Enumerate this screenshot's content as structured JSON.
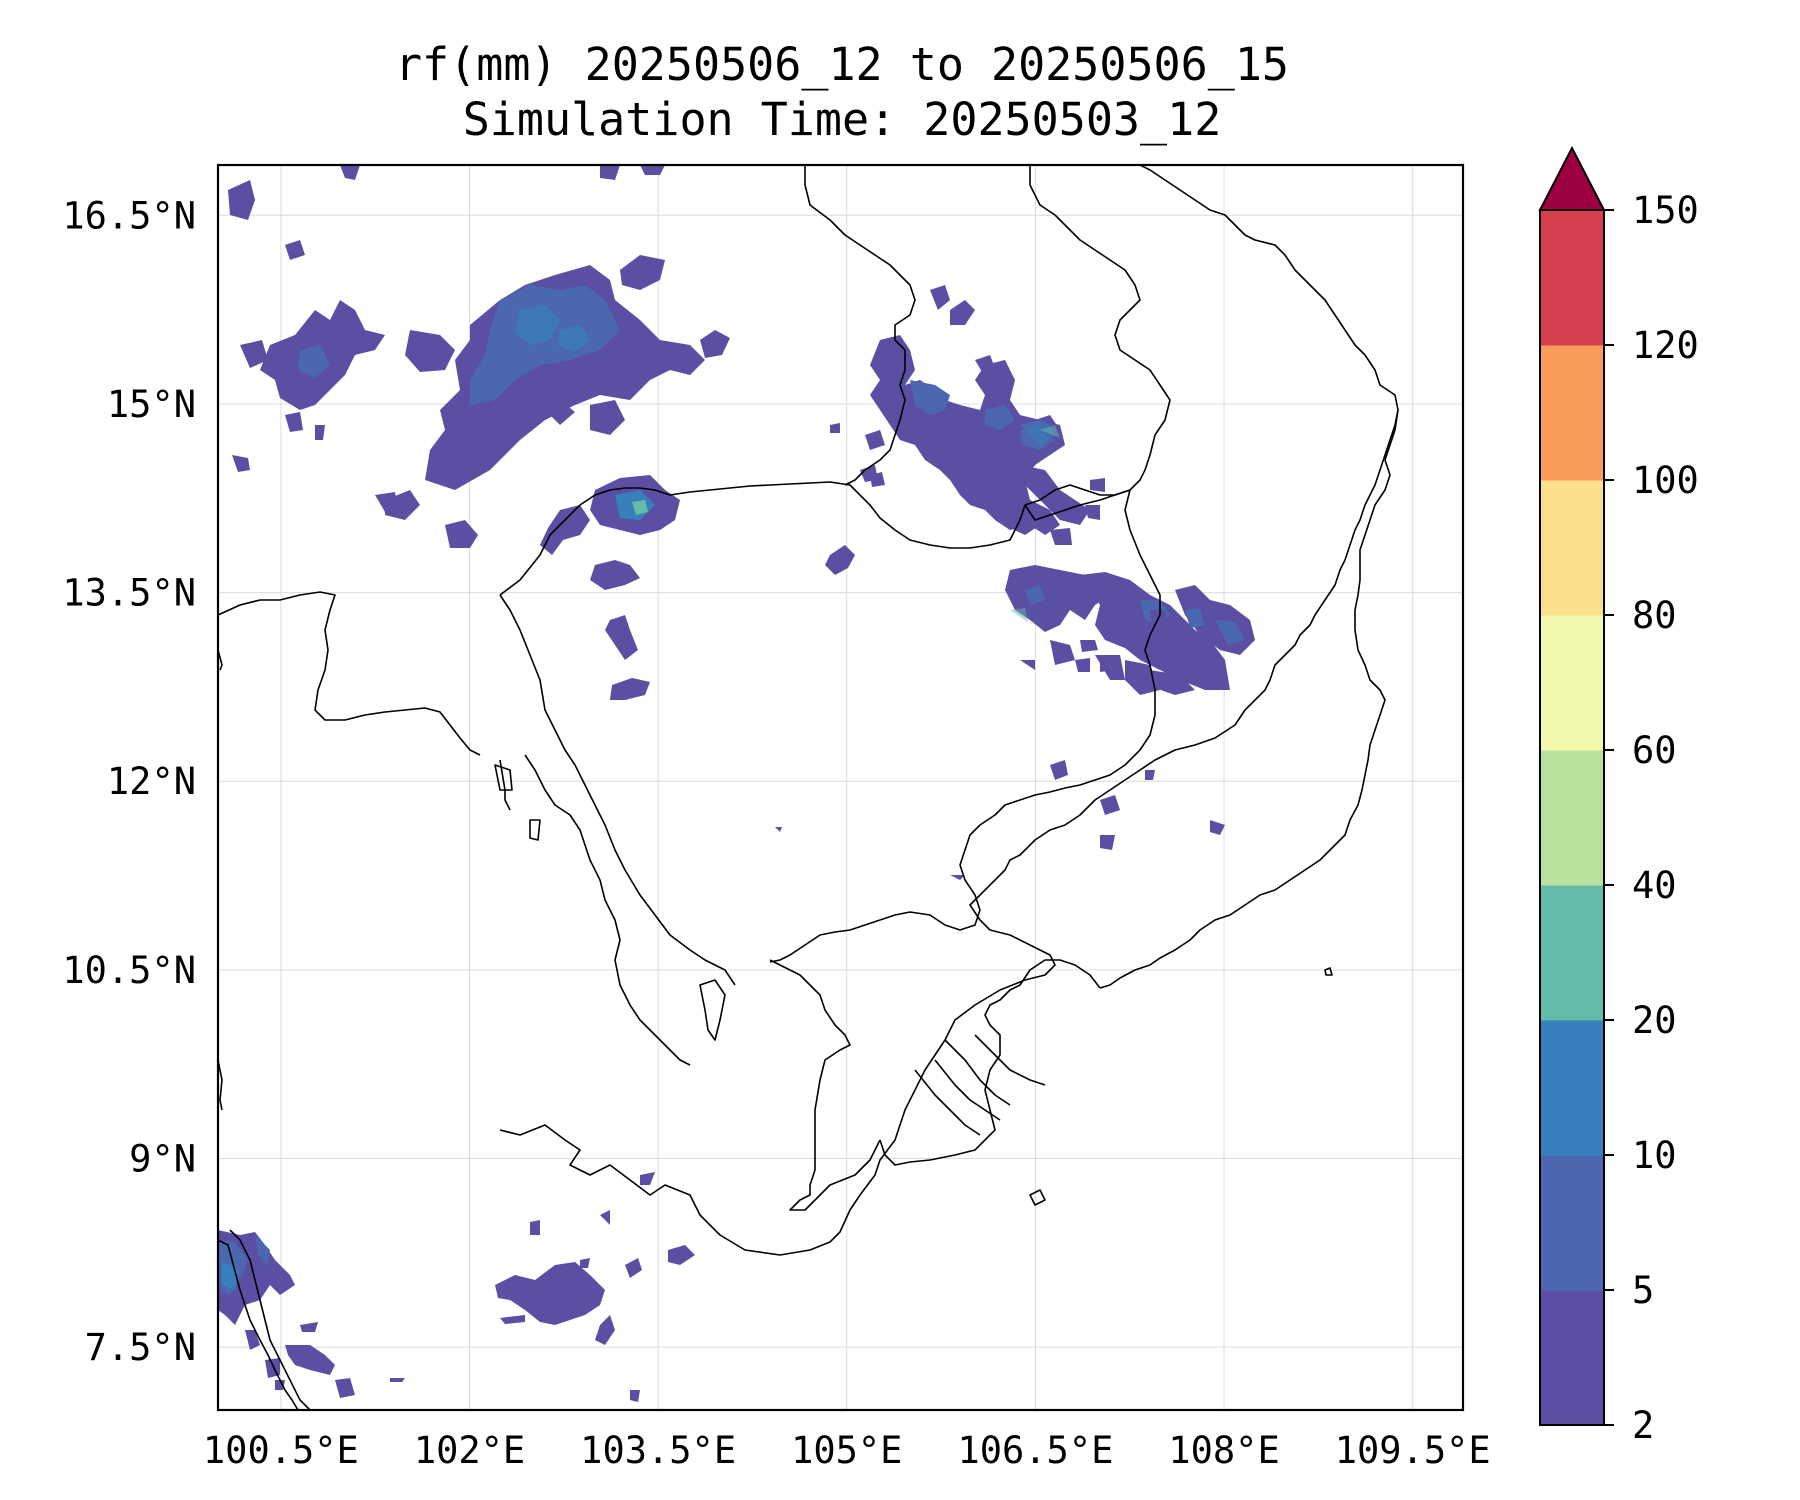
{
  "title": {
    "line1": "rf(mm) 20250506_12 to 20250506_15",
    "line2": "Simulation Time: 20250503_12"
  },
  "map": {
    "lon_range": [
      100.0,
      109.9
    ],
    "lat_range": [
      7.0,
      16.9
    ],
    "lon_ticks": [
      {
        "value": 100.5,
        "label": "100.5°E"
      },
      {
        "value": 102.0,
        "label": "102°E"
      },
      {
        "value": 103.5,
        "label": "103.5°E"
      },
      {
        "value": 105.0,
        "label": "105°E"
      },
      {
        "value": 106.5,
        "label": "106.5°E"
      },
      {
        "value": 108.0,
        "label": "108°E"
      },
      {
        "value": 109.5,
        "label": "109.5°E"
      }
    ],
    "lat_ticks": [
      {
        "value": 16.5,
        "label": "16.5°N"
      },
      {
        "value": 15.0,
        "label": "15°N"
      },
      {
        "value": 13.5,
        "label": "13.5°N"
      },
      {
        "value": 12.0,
        "label": "12°N"
      },
      {
        "value": 10.5,
        "label": "10.5°N"
      },
      {
        "value": 9.0,
        "label": "9°N"
      },
      {
        "value": 7.5,
        "label": "7.5°N"
      }
    ],
    "grid": true
  },
  "colorbar": {
    "extend": "max",
    "levels": [
      {
        "label": "2",
        "color": "#5a4fa2"
      },
      {
        "label": "5",
        "color": "#4a67b0"
      },
      {
        "label": "10",
        "color": "#3880bb"
      },
      {
        "label": "20",
        "color": "#62bca9"
      },
      {
        "label": "40",
        "color": "#bbe19f"
      },
      {
        "label": "60",
        "color": "#f2f9ad"
      },
      {
        "label": "80",
        "color": "#fbdf8a"
      },
      {
        "label": "100",
        "color": "#f99c5b"
      },
      {
        "label": "120",
        "color": "#d53f4f"
      },
      {
        "label": "150",
        "color": "#9e0142"
      }
    ]
  }
}
